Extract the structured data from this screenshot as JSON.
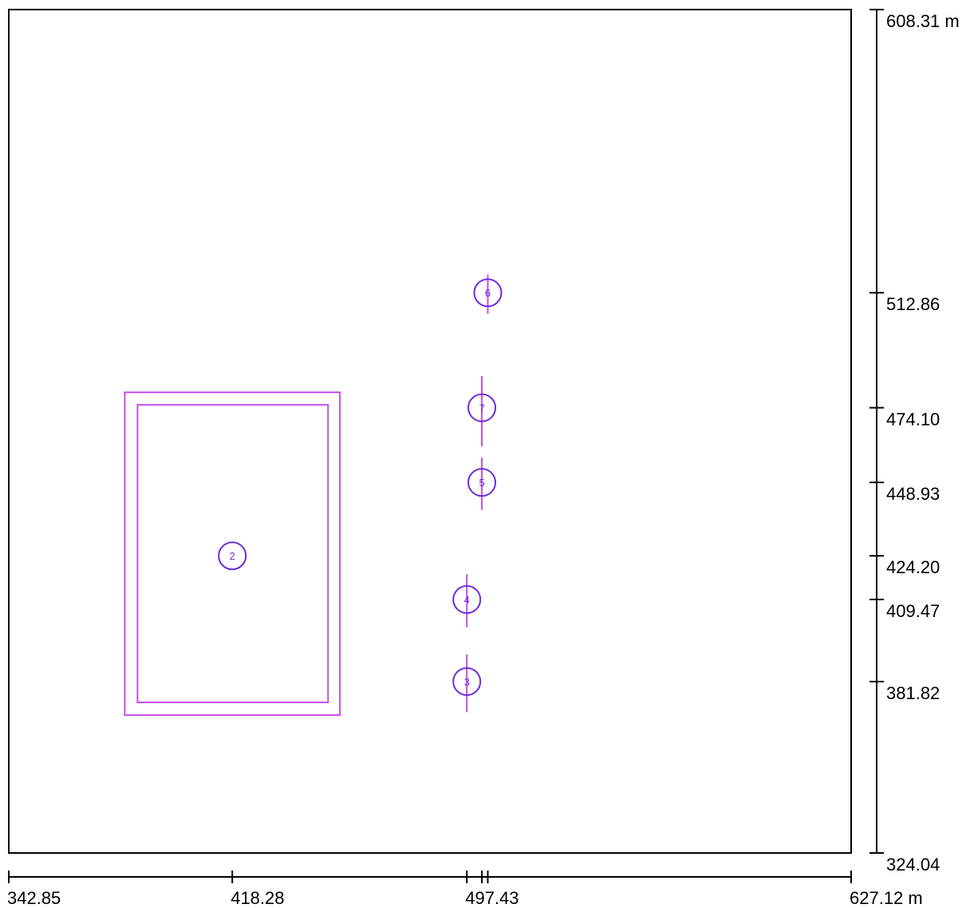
{
  "plan": {
    "extent": {
      "x": [
        342.85,
        627.12
      ],
      "y": [
        324.04,
        608.31
      ]
    },
    "x_axis": {
      "ticks": [
        342.85,
        418.28,
        497.43,
        502.5,
        504.5,
        627.12
      ],
      "labels": [
        {
          "value": 342.85,
          "text": "342.85"
        },
        {
          "value": 418.28,
          "text": "418.28"
        },
        {
          "value": 497.43,
          "text": "497.43"
        },
        {
          "value": 627.12,
          "text": "627.12 m"
        }
      ]
    },
    "y_axis": {
      "ticks": [
        608.31,
        512.86,
        474.1,
        448.93,
        424.2,
        409.47,
        381.82,
        324.04
      ],
      "labels": [
        {
          "value": 608.31,
          "text": "608.31 m"
        },
        {
          "value": 512.86,
          "text": "512.86"
        },
        {
          "value": 474.1,
          "text": "474.10"
        },
        {
          "value": 448.93,
          "text": "448.93"
        },
        {
          "value": 424.2,
          "text": "424.20"
        },
        {
          "value": 409.47,
          "text": "409.47"
        },
        {
          "value": 381.82,
          "text": "381.82"
        },
        {
          "value": 324.04,
          "text": "324.04"
        }
      ]
    },
    "area_outer": {
      "x1": 382.0,
      "y1": 370.5,
      "x2": 454.6,
      "y2": 479.3
    },
    "area_inner": {
      "x1": 386.3,
      "y1": 374.8,
      "x2": 450.6,
      "y2": 475.1
    },
    "luminaires": [
      {
        "id": "2",
        "x": 418.28,
        "y": 424.2,
        "line_top": null,
        "line_bottom": null
      },
      {
        "id": "6",
        "x": 504.5,
        "y": 512.86,
        "line_top": 519.0,
        "line_bottom": 505.8
      },
      {
        "id": "7",
        "x": 502.5,
        "y": 474.1,
        "line_top": 484.7,
        "line_bottom": 461.1
      },
      {
        "id": "5",
        "x": 502.5,
        "y": 448.93,
        "line_top": 457.3,
        "line_bottom": 439.7
      },
      {
        "id": "4",
        "x": 497.43,
        "y": 409.47,
        "line_top": 418.0,
        "line_bottom": 400.1
      },
      {
        "id": "3",
        "x": 497.43,
        "y": 381.82,
        "line_top": 391.0,
        "line_bottom": 371.5
      }
    ],
    "colors": {
      "frame": "#000000",
      "area": "#c44ee6",
      "luminaire": "#6a2cd9",
      "luminaire_line": "#c44ee6"
    }
  }
}
